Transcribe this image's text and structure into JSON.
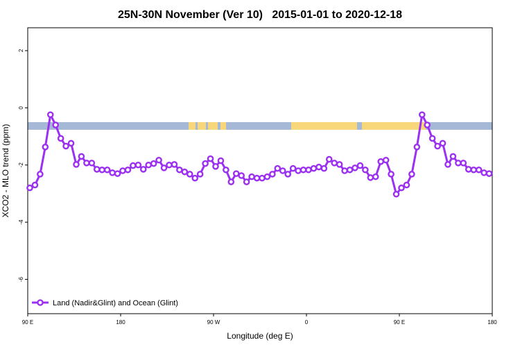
{
  "chart_data": {
    "type": "line",
    "title": "25N-30N November (Ver 10)   2015-01-01 to 2020-12-18",
    "xlabel": "Longitude (deg E)",
    "ylabel": "XCO2 - MLO trend (ppm)",
    "xlim": [
      90,
      540
    ],
    "ylim": [
      -7.2,
      2.8
    ],
    "xticks": [
      {
        "value": 90,
        "label": "90 E"
      },
      180,
      {
        "value": 270,
        "label": "90 W"
      },
      {
        "value": 360,
        "label": "0"
      },
      {
        "value": 450,
        "label": "90 E"
      },
      {
        "value": 540,
        "label": "180"
      }
    ],
    "yticks": [
      2,
      0,
      -2,
      -4,
      -6
    ],
    "legend": "bottom-left",
    "x": [
      92,
      97,
      102,
      107,
      112,
      117,
      122,
      127,
      132,
      137,
      142,
      147,
      152,
      157,
      162,
      167,
      172,
      177,
      182,
      187,
      192,
      197,
      202,
      207,
      212,
      217,
      222,
      227,
      232,
      237,
      242,
      247,
      252,
      257,
      262,
      267,
      272,
      277,
      282,
      287,
      292,
      297,
      302,
      307,
      312,
      317,
      322,
      327,
      332,
      337,
      342,
      347,
      352,
      357,
      362,
      367,
      372,
      377,
      382,
      387,
      392,
      397,
      402,
      407,
      412,
      417,
      422,
      427,
      432,
      437,
      442,
      447,
      452,
      457,
      462,
      467,
      472,
      477,
      482,
      487,
      492,
      497,
      502,
      507,
      512,
      517,
      522,
      527,
      532,
      537
    ],
    "series": [
      {
        "name": "Land (Nadir&Glint) and Ocean (Glint)",
        "color": "#9b30f0",
        "values": [
          -2.8,
          -2.7,
          -2.32,
          -1.37,
          -0.24,
          -0.6,
          -1.07,
          -1.34,
          -1.24,
          -1.98,
          -1.7,
          -1.93,
          -1.93,
          -2.15,
          -2.17,
          -2.17,
          -2.27,
          -2.3,
          -2.2,
          -2.17,
          -2.02,
          -2.0,
          -2.15,
          -2.0,
          -1.95,
          -1.83,
          -2.1,
          -2.0,
          -1.98,
          -2.17,
          -2.24,
          -2.32,
          -2.46,
          -2.32,
          -1.95,
          -1.78,
          -2.05,
          -1.85,
          -2.17,
          -2.59,
          -2.3,
          -2.37,
          -2.59,
          -2.41,
          -2.46,
          -2.46,
          -2.41,
          -2.32,
          -2.12,
          -2.2,
          -2.32,
          -2.12,
          -2.2,
          -2.17,
          -2.17,
          -2.12,
          -2.07,
          -2.12,
          -1.8,
          -1.93,
          -1.98,
          -2.2,
          -2.17,
          -2.1,
          -2.02,
          -2.17,
          -2.44,
          -2.41,
          -1.88,
          -1.83,
          -2.32,
          -3.02,
          -2.8,
          -2.7,
          -2.32,
          -1.37,
          -0.24,
          -0.6,
          -1.07,
          -1.34,
          -1.24,
          -1.98,
          -1.7,
          -1.93,
          -1.93,
          -2.15,
          -2.17,
          -2.17,
          -2.27,
          -2.3
        ]
      }
    ]
  }
}
